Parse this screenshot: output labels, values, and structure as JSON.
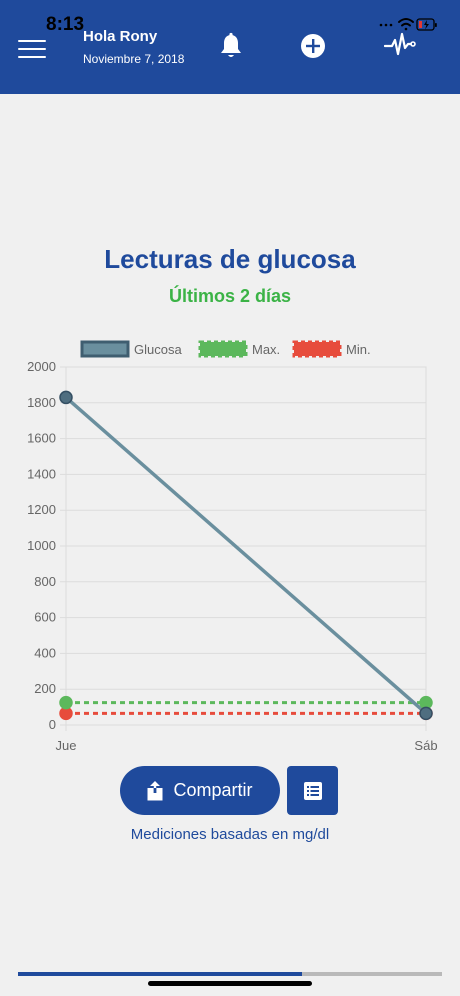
{
  "status": {
    "time": "8:13"
  },
  "header": {
    "greeting": "Hola Rony",
    "date": "Noviembre 7, 2018",
    "icons": [
      "menu-icon",
      "bell-icon",
      "plus-circle-icon",
      "pulse-icon"
    ],
    "background": "#1f4a9c"
  },
  "chart_data": {
    "type": "line",
    "title": "Lecturas de glucosa",
    "subtitle": "Últimos 2 días",
    "categories": [
      "Jue",
      "Sáb"
    ],
    "series": [
      {
        "name": "Glucosa",
        "values": [
          1830,
          65
        ],
        "color": "#6a8f9e",
        "style": "solid"
      },
      {
        "name": "Max.",
        "values": [
          125,
          125
        ],
        "color": "#5cb85c",
        "style": "dashed"
      },
      {
        "name": "Min.",
        "values": [
          65,
          65
        ],
        "color": "#e74c3c",
        "style": "dashed"
      }
    ],
    "y_ticks": [
      "0",
      "200",
      "400",
      "600",
      "800",
      "1000",
      "1200",
      "1400",
      "1600",
      "1800",
      "2000"
    ],
    "ylim": [
      0,
      2000
    ],
    "grid": true,
    "legend_position": "top"
  },
  "actions": {
    "share_label": "Compartir",
    "units_note": "Mediciones basadas en mg/dl"
  },
  "progress": {
    "value": 0.67
  }
}
